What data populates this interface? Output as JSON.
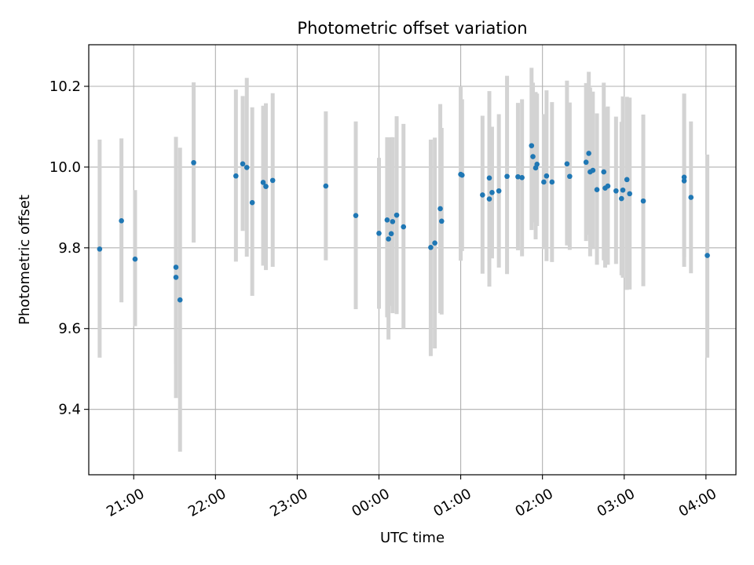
{
  "chart_data": {
    "type": "scatter",
    "title": "Photometric offset variation",
    "xlabel": "UTC time",
    "ylabel": "Photometric offset",
    "x_tick_labels": [
      "21:00",
      "22:00",
      "23:00",
      "00:00",
      "01:00",
      "02:00",
      "03:00",
      "04:00"
    ],
    "y_tick_labels": [
      "9.4",
      "9.6",
      "9.8",
      "10.0",
      "10.2"
    ],
    "y_ticks": [
      9.4,
      9.6,
      9.8,
      10.0,
      10.2
    ],
    "xlim": [
      "20:27",
      "04:22"
    ],
    "ylim": [
      9.238,
      10.303
    ],
    "grid": true,
    "colors": {
      "marker": "#1f77b4",
      "errorbar": "#d3d3d3",
      "grid": "#b0b0b0"
    },
    "series": [
      {
        "x": [
          "20:35",
          "20:51",
          "21:01",
          "21:31",
          "21:31",
          "21:34",
          "21:44",
          "22:15",
          "22:20",
          "22:23",
          "22:27",
          "22:35",
          "22:37",
          "22:42",
          "23:21",
          "23:43",
          "00:00",
          "00:06",
          "00:07",
          "00:09",
          "00:10",
          "00:13",
          "00:18",
          "00:38",
          "00:41",
          "00:45",
          "00:46",
          "01:00",
          "01:01",
          "01:16",
          "01:21",
          "01:21",
          "01:23",
          "01:28",
          "01:34",
          "01:42",
          "01:45",
          "01:52",
          "01:53",
          "01:55",
          "01:56",
          "02:01",
          "02:03",
          "02:07",
          "02:18",
          "02:20",
          "02:32",
          "02:34",
          "02:35",
          "02:37",
          "02:40",
          "02:45",
          "02:46",
          "02:48",
          "02:54",
          "02:58",
          "02:59",
          "03:02",
          "03:04",
          "03:14",
          "03:44",
          "03:44",
          "03:49",
          "04:01"
        ],
        "y": [
          9.797,
          9.867,
          9.772,
          9.727,
          9.752,
          9.671,
          10.011,
          9.978,
          10.008,
          9.999,
          9.912,
          9.962,
          9.952,
          9.967,
          9.953,
          9.88,
          9.836,
          9.869,
          9.822,
          9.835,
          9.865,
          9.881,
          9.852,
          9.801,
          9.812,
          9.897,
          9.866,
          9.982,
          9.98,
          9.931,
          9.921,
          9.973,
          9.937,
          9.941,
          9.977,
          9.976,
          9.974,
          10.053,
          10.026,
          9.998,
          10.007,
          9.963,
          9.978,
          9.963,
          10.008,
          9.977,
          10.012,
          10.034,
          9.988,
          9.992,
          9.944,
          9.988,
          9.948,
          9.953,
          9.941,
          9.922,
          9.943,
          9.969,
          9.934,
          9.916,
          9.975,
          9.966,
          9.925,
          9.781
        ],
        "yerr_low": [
          9.528,
          9.665,
          9.606,
          9.512,
          9.428,
          9.295,
          9.813,
          9.766,
          9.842,
          9.778,
          9.681,
          9.756,
          9.745,
          9.753,
          9.769,
          9.648,
          9.649,
          9.628,
          9.573,
          9.656,
          9.638,
          9.636,
          9.6,
          9.532,
          9.551,
          9.638,
          9.635,
          9.768,
          9.792,
          9.736,
          9.704,
          9.77,
          9.774,
          9.751,
          9.735,
          9.794,
          9.779,
          9.844,
          9.863,
          9.821,
          9.854,
          9.797,
          9.767,
          9.765,
          9.806,
          9.795,
          9.817,
          9.832,
          9.779,
          9.797,
          9.758,
          9.769,
          9.751,
          9.758,
          9.76,
          9.732,
          9.726,
          9.696,
          9.697,
          9.705,
          9.753,
          9.778,
          9.737,
          9.528
        ],
        "yerr_high": [
          10.068,
          10.071,
          9.943,
          9.944,
          10.075,
          10.048,
          10.21,
          10.192,
          10.176,
          10.221,
          10.148,
          10.152,
          10.158,
          10.183,
          10.138,
          10.113,
          10.023,
          10.074,
          10.073,
          10.074,
          10.074,
          10.126,
          10.107,
          10.068,
          10.073,
          10.156,
          10.097,
          10.2,
          10.168,
          10.127,
          10.137,
          10.188,
          10.1,
          10.131,
          10.226,
          10.159,
          10.168,
          10.246,
          10.209,
          10.186,
          10.182,
          10.131,
          10.19,
          10.161,
          10.214,
          10.16,
          10.208,
          10.236,
          10.197,
          10.187,
          10.133,
          10.209,
          10.147,
          10.15,
          10.125,
          10.112,
          10.175,
          10.174,
          10.172,
          10.13,
          10.18,
          10.182,
          10.113,
          10.031
        ]
      }
    ]
  }
}
